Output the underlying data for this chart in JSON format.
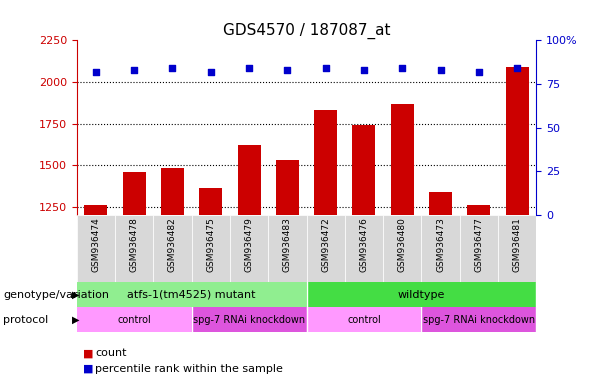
{
  "title": "GDS4570 / 187087_at",
  "samples": [
    "GSM936474",
    "GSM936478",
    "GSM936482",
    "GSM936475",
    "GSM936479",
    "GSM936483",
    "GSM936472",
    "GSM936476",
    "GSM936480",
    "GSM936473",
    "GSM936477",
    "GSM936481"
  ],
  "counts": [
    1260,
    1460,
    1480,
    1360,
    1620,
    1530,
    1830,
    1740,
    1870,
    1340,
    1260,
    2090
  ],
  "percentile_ranks": [
    82,
    83,
    84,
    82,
    84,
    83,
    84,
    83,
    84,
    83,
    82,
    84
  ],
  "ylim_left": [
    1200,
    2250
  ],
  "ylim_right": [
    0,
    100
  ],
  "yticks_left": [
    1250,
    1500,
    1750,
    2000,
    2250
  ],
  "yticks_right": [
    0,
    25,
    50,
    75,
    100
  ],
  "bar_color": "#cc0000",
  "scatter_color": "#0000cc",
  "genotype_groups": [
    {
      "label": "atfs-1(tm4525) mutant",
      "start": 0,
      "end": 6,
      "color": "#90ee90"
    },
    {
      "label": "wildtype",
      "start": 6,
      "end": 12,
      "color": "#44dd44"
    }
  ],
  "protocol_groups": [
    {
      "label": "control",
      "start": 0,
      "end": 3,
      "color": "#ff99ff"
    },
    {
      "label": "spg-7 RNAi knockdown",
      "start": 3,
      "end": 6,
      "color": "#dd55dd"
    },
    {
      "label": "control",
      "start": 6,
      "end": 9,
      "color": "#ff99ff"
    },
    {
      "label": "spg-7 RNAi knockdown",
      "start": 9,
      "end": 12,
      "color": "#dd55dd"
    }
  ],
  "legend_count_label": "count",
  "legend_percentile_label": "percentile rank within the sample",
  "legend_count_color": "#cc0000",
  "legend_percentile_color": "#0000cc",
  "background_color": "#ffffff",
  "title_fontsize": 11,
  "tick_fontsize": 8,
  "annotation_fontsize": 8,
  "sample_fontsize": 6.5
}
